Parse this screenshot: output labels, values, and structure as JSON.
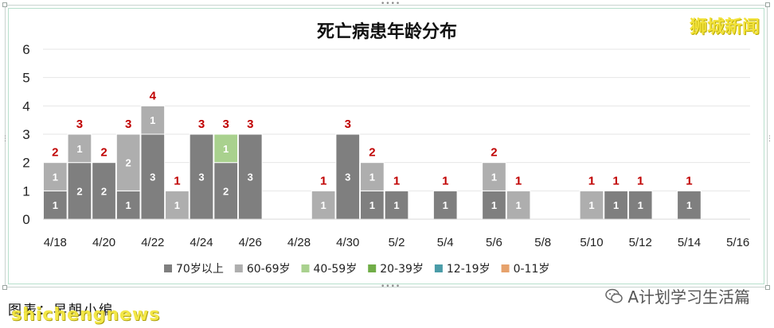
{
  "watermark": "狮城新闻",
  "footer": {
    "credit": "图表：早朝小编",
    "site": "shichengnews",
    "wechat": "A计划学习生活篇"
  },
  "colors": {
    "age_70_plus": "#7f7f7f",
    "age_60_69": "#aeaeae",
    "age_40_59": "#a9d18e",
    "age_20_39": "#70ad47",
    "age_12_19": "#4a9ca8",
    "age_0_11": "#e6a26c",
    "total_label": "#c00000",
    "grid": "#e6e6e6"
  },
  "chart_data": {
    "type": "bar",
    "stacked": true,
    "title": "死亡病患年龄分布",
    "xlabel": "",
    "ylabel": "",
    "ylim": [
      0,
      6
    ],
    "yticks": [
      0,
      1,
      2,
      3,
      4,
      5,
      6
    ],
    "grid": true,
    "legend_position": "bottom",
    "categories": [
      "4/18",
      "4/19",
      "4/20",
      "4/21",
      "4/22",
      "4/23",
      "4/24",
      "4/25",
      "4/26",
      "4/27",
      "4/28",
      "4/29",
      "4/30",
      "5/1",
      "5/2",
      "5/3",
      "5/4",
      "5/5",
      "5/6",
      "5/7",
      "5/8",
      "5/9",
      "5/10",
      "5/11",
      "5/12",
      "5/13",
      "5/14",
      "5/15",
      "5/16"
    ],
    "tick_labels": [
      "4/18",
      "",
      "4/20",
      "",
      "4/22",
      "",
      "4/24",
      "",
      "4/26",
      "",
      "4/28",
      "",
      "4/30",
      "",
      "5/2",
      "",
      "5/4",
      "",
      "5/6",
      "",
      "5/8",
      "",
      "5/10",
      "",
      "5/12",
      "",
      "5/14",
      "",
      "5/16"
    ],
    "series": [
      {
        "name": "70岁以上",
        "color_key": "age_70_plus",
        "values": [
          1,
          2,
          2,
          1,
          3,
          0,
          3,
          2,
          3,
          0,
          0,
          0,
          3,
          1,
          1,
          0,
          1,
          0,
          1,
          0,
          0,
          0,
          0,
          1,
          1,
          0,
          1,
          0,
          0
        ]
      },
      {
        "name": "60-69岁",
        "color_key": "age_60_69",
        "values": [
          1,
          1,
          0,
          2,
          1,
          1,
          0,
          0,
          0,
          0,
          0,
          1,
          0,
          1,
          0,
          0,
          0,
          0,
          1,
          1,
          0,
          0,
          1,
          0,
          0,
          0,
          0,
          0,
          0
        ]
      },
      {
        "name": "40-59岁",
        "color_key": "age_40_59",
        "values": [
          0,
          0,
          0,
          0,
          0,
          0,
          0,
          1,
          0,
          0,
          0,
          0,
          0,
          0,
          0,
          0,
          0,
          0,
          0,
          0,
          0,
          0,
          0,
          0,
          0,
          0,
          0,
          0,
          0
        ]
      },
      {
        "name": "20-39岁",
        "color_key": "age_20_39",
        "values": [
          0,
          0,
          0,
          0,
          0,
          0,
          0,
          0,
          0,
          0,
          0,
          0,
          0,
          0,
          0,
          0,
          0,
          0,
          0,
          0,
          0,
          0,
          0,
          0,
          0,
          0,
          0,
          0,
          0
        ]
      },
      {
        "name": "12-19岁",
        "color_key": "age_12_19",
        "values": [
          0,
          0,
          0,
          0,
          0,
          0,
          0,
          0,
          0,
          0,
          0,
          0,
          0,
          0,
          0,
          0,
          0,
          0,
          0,
          0,
          0,
          0,
          0,
          0,
          0,
          0,
          0,
          0,
          0
        ]
      },
      {
        "name": "0-11岁",
        "color_key": "age_0_11",
        "values": [
          0,
          0,
          0,
          0,
          0,
          0,
          0,
          0,
          0,
          0,
          0,
          0,
          0,
          0,
          0,
          0,
          0,
          0,
          0,
          0,
          0,
          0,
          0,
          0,
          0,
          0,
          0,
          0,
          0
        ]
      }
    ],
    "totals": [
      2,
      3,
      2,
      3,
      4,
      1,
      3,
      3,
      3,
      0,
      0,
      1,
      3,
      2,
      1,
      0,
      1,
      0,
      2,
      1,
      0,
      0,
      1,
      1,
      1,
      0,
      1,
      0,
      0
    ]
  }
}
